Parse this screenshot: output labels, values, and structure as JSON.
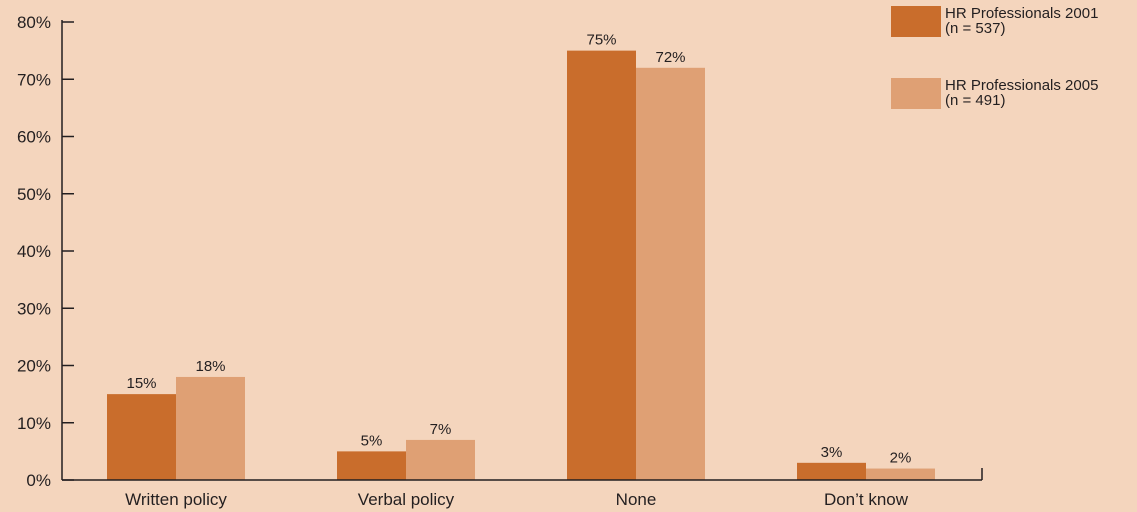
{
  "chart_data": {
    "type": "bar",
    "title": "",
    "xlabel": "",
    "ylabel": "",
    "categories": [
      "Written policy",
      "Verbal policy",
      "None",
      "Don’t know"
    ],
    "series": [
      {
        "legend_lines": [
          "HR Professionals 2001",
          "(n = 537)"
        ],
        "color": "#c96d2c",
        "values": [
          15,
          5,
          75,
          3
        ],
        "value_labels": [
          "15%",
          "5%",
          "75%",
          "3%"
        ]
      },
      {
        "legend_lines": [
          "HR Professionals 2005",
          "(n = 491)"
        ],
        "color": "#dfa074",
        "values": [
          18,
          7,
          72,
          2
        ],
        "value_labels": [
          "18%",
          "7%",
          "72%",
          "2%"
        ]
      }
    ],
    "ylim": [
      0,
      80
    ],
    "yticks": [
      0,
      10,
      20,
      30,
      40,
      50,
      60,
      70,
      80
    ],
    "ytick_labels": [
      "0%",
      "10%",
      "20%",
      "30%",
      "40%",
      "50%",
      "60%",
      "70%",
      "80%"
    ],
    "grid": false,
    "legend_position": "top-right",
    "background_color": "#f4d5bd",
    "axis_color": "#231f20"
  }
}
